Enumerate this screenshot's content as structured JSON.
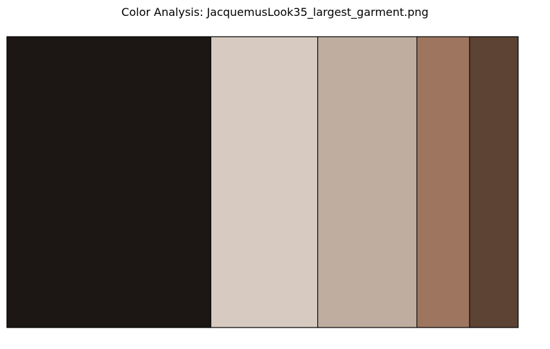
{
  "chart_data": {
    "type": "bar",
    "title": "Color Analysis: JacquemusLook35_largest_garment.png",
    "xlabel": "",
    "ylabel": "",
    "grid": false,
    "segments": [
      {
        "color": "#1c1714",
        "proportion": 0.399
      },
      {
        "color": "#d7cac0",
        "proportion": 0.209
      },
      {
        "color": "#bfae9f",
        "proportion": 0.194
      },
      {
        "color": "#9e7660",
        "proportion": 0.103
      },
      {
        "color": "#5c4333",
        "proportion": 0.095
      }
    ]
  }
}
